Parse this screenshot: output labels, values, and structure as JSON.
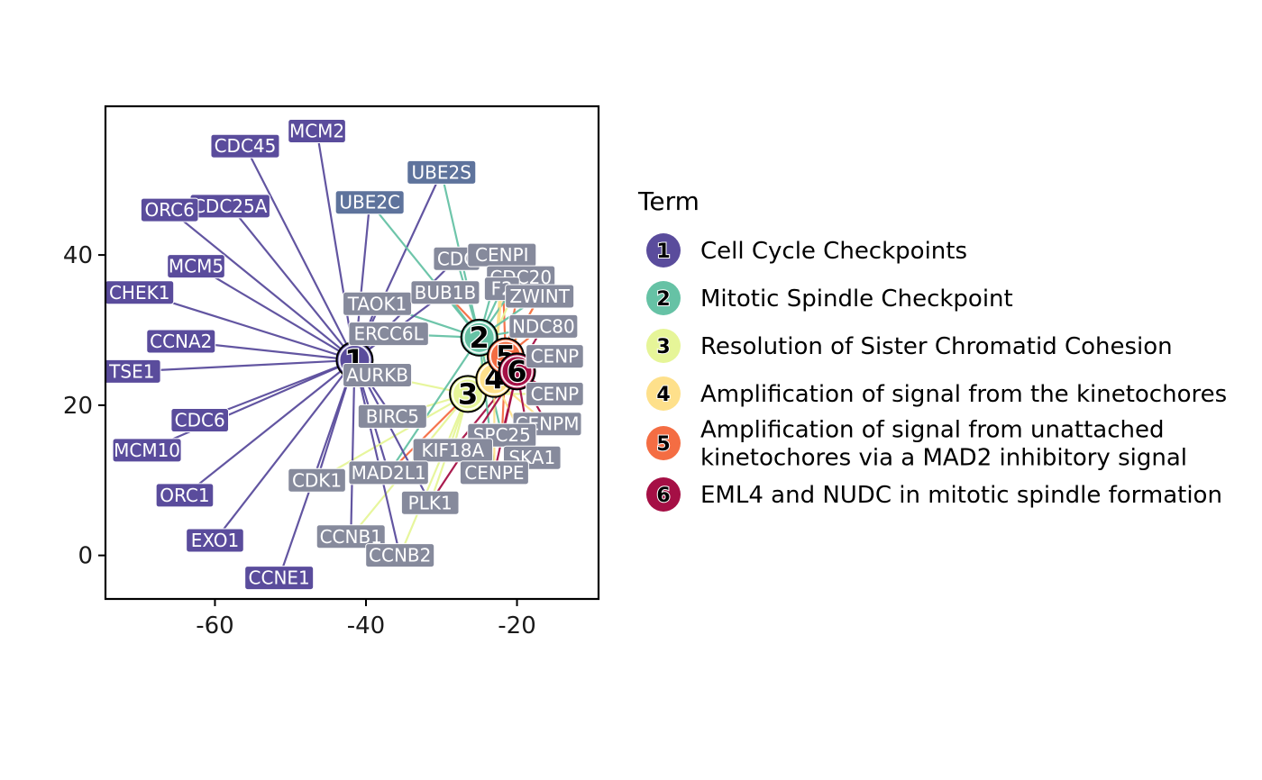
{
  "chart_data": {
    "type": "network",
    "xlim": [
      -74.5,
      -9.2
    ],
    "ylim": [
      -5.8,
      59.8
    ],
    "x_ticks": [
      {
        "value": -60,
        "label": "-60"
      },
      {
        "value": -40,
        "label": "-40"
      },
      {
        "value": -20,
        "label": "-20"
      }
    ],
    "y_ticks": [
      {
        "value": 0,
        "label": "0"
      },
      {
        "value": 20,
        "label": "20"
      },
      {
        "value": 40,
        "label": "40"
      }
    ],
    "legend": {
      "title": "Term",
      "placement": "right",
      "items": [
        {
          "id": "1",
          "label": "Cell Cycle Checkpoints",
          "color": "#5A4C9C"
        },
        {
          "id": "2",
          "label": "Mitotic Spindle Checkpoint",
          "color": "#66C2A5"
        },
        {
          "id": "3",
          "label": "Resolution of Sister Chromatid Cohesion",
          "color": "#E6F598"
        },
        {
          "id": "4",
          "label": "Amplification of signal from the kinetochores",
          "color": "#FEE08B"
        },
        {
          "id": "5",
          "label": "Amplification of signal from unattached\nkinetochores via a MAD2 inhibitory signal",
          "color": "#F46D43"
        },
        {
          "id": "6",
          "label": "EML4 and NUDC in mitotic spindle formation",
          "color": "#A50F45"
        }
      ]
    },
    "colors": {
      "gene_exclusive": "#5A4C9C",
      "gene_shared": "#868A9C",
      "gene_ube": "#5E739C",
      "background": "#ffffff",
      "axis": "#000000"
    },
    "terms": [
      {
        "id": "1",
        "x": -41.5,
        "y": 26.0,
        "color": "#5A4C9C"
      },
      {
        "id": "2",
        "x": -25.0,
        "y": 29.0,
        "color": "#66C2A5"
      },
      {
        "id": "3",
        "x": -26.5,
        "y": 21.5,
        "color": "#E6F598"
      },
      {
        "id": "4",
        "x": -23.0,
        "y": 23.5,
        "color": "#FEE08B"
      },
      {
        "id": "5",
        "x": -21.5,
        "y": 26.5,
        "color": "#F46D43"
      },
      {
        "id": "6",
        "x": -20.0,
        "y": 24.5,
        "color": "#A50F45"
      }
    ],
    "genes": [
      {
        "name": "MCM2",
        "x": -46.5,
        "y": 56.5,
        "terms": [
          "1"
        ],
        "kind": "exclusive"
      },
      {
        "name": "CDC45",
        "x": -56.0,
        "y": 54.5,
        "terms": [
          "1"
        ],
        "kind": "exclusive"
      },
      {
        "name": "CDC25A",
        "x": -58.0,
        "y": 46.5,
        "terms": [
          "1"
        ],
        "kind": "exclusive"
      },
      {
        "name": "ORC6",
        "x": -66.0,
        "y": 46.0,
        "terms": [
          "1"
        ],
        "kind": "exclusive"
      },
      {
        "name": "MCM5",
        "x": -62.5,
        "y": 38.5,
        "terms": [
          "1"
        ],
        "kind": "exclusive"
      },
      {
        "name": "CHEK1",
        "x": -70.0,
        "y": 35.0,
        "terms": [
          "1"
        ],
        "kind": "exclusive"
      },
      {
        "name": "CCNA2",
        "x": -64.5,
        "y": 28.5,
        "terms": [
          "1"
        ],
        "kind": "exclusive"
      },
      {
        "name": "TSE1",
        "x": -71.0,
        "y": 24.5,
        "terms": [
          "1"
        ],
        "kind": "exclusive"
      },
      {
        "name": "CDC6",
        "x": -62.0,
        "y": 18.0,
        "terms": [
          "1"
        ],
        "kind": "exclusive"
      },
      {
        "name": "MCM10",
        "x": -69.0,
        "y": 14.0,
        "terms": [
          "1"
        ],
        "kind": "exclusive"
      },
      {
        "name": "ORC1",
        "x": -64.0,
        "y": 8.0,
        "terms": [
          "1"
        ],
        "kind": "exclusive"
      },
      {
        "name": "EXO1",
        "x": -60.0,
        "y": 2.0,
        "terms": [
          "1"
        ],
        "kind": "exclusive"
      },
      {
        "name": "CCNE1",
        "x": -51.5,
        "y": -3.0,
        "terms": [
          "1"
        ],
        "kind": "exclusive"
      },
      {
        "name": "UBE2S",
        "x": -30.0,
        "y": 51.0,
        "terms": [
          "1",
          "2"
        ],
        "kind": "ube"
      },
      {
        "name": "UBE2C",
        "x": -39.5,
        "y": 47.0,
        "terms": [
          "1",
          "2"
        ],
        "kind": "ube"
      },
      {
        "name": "CDC",
        "x": -28.0,
        "y": 39.5,
        "terms": [
          "1",
          "2"
        ],
        "kind": "shared"
      },
      {
        "name": "CENPI",
        "x": -22.0,
        "y": 40.0,
        "terms": [
          "2",
          "4",
          "5"
        ],
        "kind": "shared"
      },
      {
        "name": "CDC20",
        "x": -19.5,
        "y": 37.0,
        "terms": [
          "2",
          "3",
          "5"
        ],
        "kind": "shared"
      },
      {
        "name": "F2",
        "x": -22.0,
        "y": 35.5,
        "terms": [
          "2",
          "4"
        ],
        "kind": "shared"
      },
      {
        "name": "ZWINT",
        "x": -17.0,
        "y": 34.5,
        "terms": [
          "2",
          "4",
          "5"
        ],
        "kind": "shared"
      },
      {
        "name": "TAOK1",
        "x": -38.5,
        "y": 33.5,
        "terms": [
          "1",
          "2"
        ],
        "kind": "shared"
      },
      {
        "name": "BUB1B",
        "x": -29.5,
        "y": 35.0,
        "terms": [
          "1",
          "2",
          "5"
        ],
        "kind": "shared"
      },
      {
        "name": "NDC80",
        "x": -16.5,
        "y": 30.5,
        "terms": [
          "2",
          "5",
          "6"
        ],
        "kind": "shared"
      },
      {
        "name": "ERCC6L",
        "x": -37.0,
        "y": 29.5,
        "terms": [
          "1",
          "2"
        ],
        "kind": "shared"
      },
      {
        "name": "CENP",
        "x": -15.0,
        "y": 26.5,
        "terms": [
          "3",
          "6"
        ],
        "kind": "shared"
      },
      {
        "name": "AURKB",
        "x": -38.5,
        "y": 24.0,
        "terms": [
          "1",
          "3"
        ],
        "kind": "shared"
      },
      {
        "name": "CENP",
        "x": -15.0,
        "y": 21.5,
        "terms": [
          "3",
          "6"
        ],
        "kind": "shared"
      },
      {
        "name": "BIRC5",
        "x": -36.5,
        "y": 18.5,
        "terms": [
          "1",
          "3"
        ],
        "kind": "shared"
      },
      {
        "name": "CENPM",
        "x": -16.0,
        "y": 17.5,
        "terms": [
          "4",
          "6"
        ],
        "kind": "shared"
      },
      {
        "name": "SPC25",
        "x": -22.0,
        "y": 16.0,
        "terms": [
          "2",
          "5",
          "6"
        ],
        "kind": "shared"
      },
      {
        "name": "KIF18A",
        "x": -28.5,
        "y": 14.0,
        "terms": [
          "3",
          "6"
        ],
        "kind": "shared"
      },
      {
        "name": "SKA1",
        "x": -18.0,
        "y": 13.0,
        "terms": [
          "4",
          "6"
        ],
        "kind": "shared"
      },
      {
        "name": "MAD2L1",
        "x": -37.0,
        "y": 11.0,
        "terms": [
          "1",
          "2",
          "5"
        ],
        "kind": "shared"
      },
      {
        "name": "CENPE",
        "x": -23.0,
        "y": 11.0,
        "terms": [
          "2",
          "4",
          "6"
        ],
        "kind": "shared"
      },
      {
        "name": "CDK1",
        "x": -46.5,
        "y": 10.0,
        "terms": [
          "1",
          "3"
        ],
        "kind": "shared"
      },
      {
        "name": "PLK1",
        "x": -31.5,
        "y": 7.0,
        "terms": [
          "1",
          "3",
          "6"
        ],
        "kind": "shared"
      },
      {
        "name": "CCNB1",
        "x": -42.0,
        "y": 2.5,
        "terms": [
          "1",
          "3"
        ],
        "kind": "shared"
      },
      {
        "name": "CCNB2",
        "x": -35.5,
        "y": 0.0,
        "terms": [
          "1",
          "3"
        ],
        "kind": "shared"
      }
    ]
  }
}
